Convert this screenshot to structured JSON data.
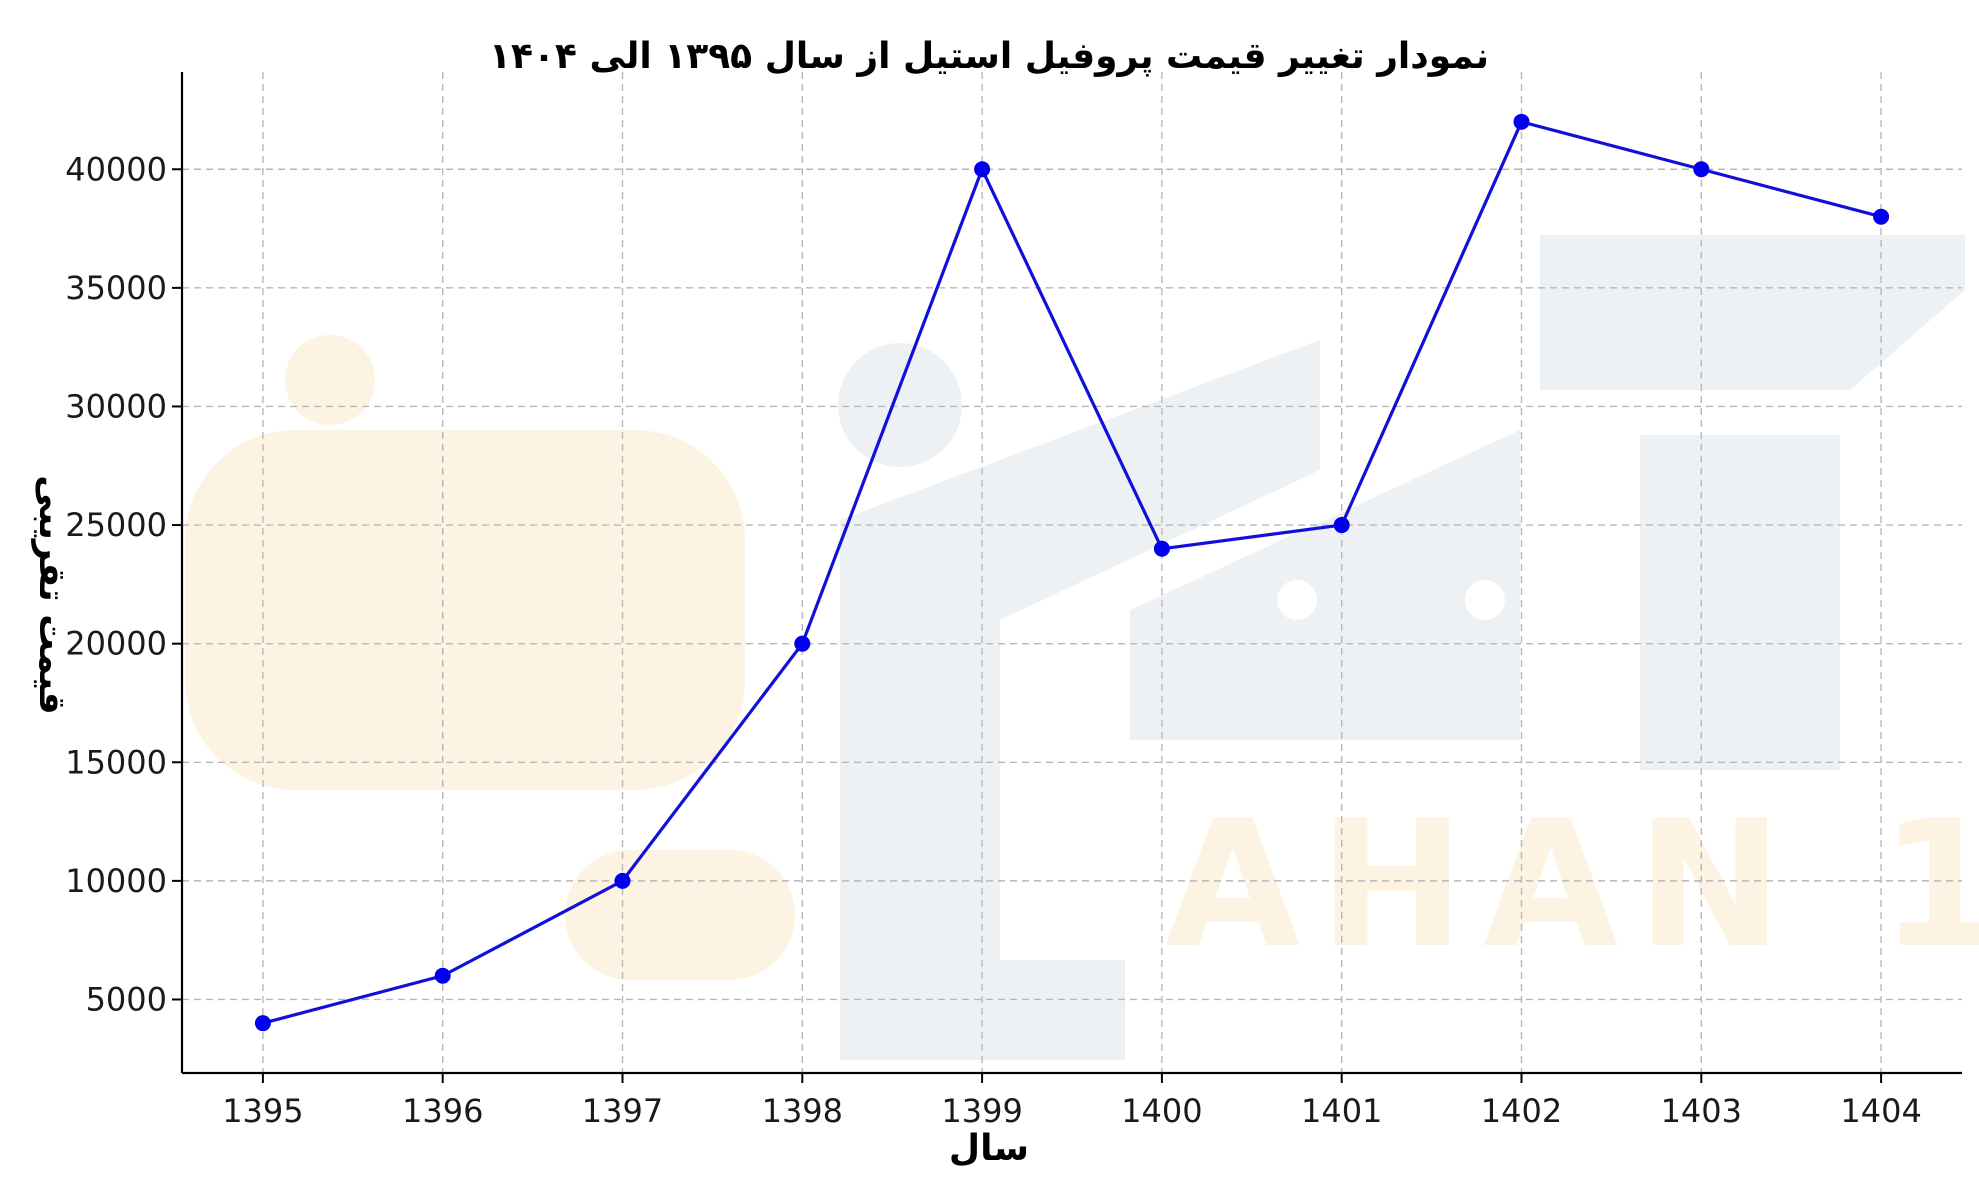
{
  "chart_data": {
    "type": "line",
    "title": "نمودار تغییر قیمت پروفیل استیل از سال ۱۳۹۵ الی ۱۴۰۴",
    "xlabel": "سال",
    "ylabel": "قیمت تقریبی",
    "x": [
      1395,
      1396,
      1397,
      1398,
      1399,
      1400,
      1401,
      1402,
      1403,
      1404
    ],
    "series": [
      {
        "values": [
          4000,
          6000,
          10000,
          20000,
          40000,
          24000,
          25000,
          42000,
          40000,
          38000
        ]
      }
    ],
    "xtick_labels": [
      "1395",
      "1396",
      "1397",
      "1398",
      "1399",
      "1400",
      "1401",
      "1402",
      "1403",
      "1404"
    ],
    "yticks": [
      5000,
      10000,
      15000,
      20000,
      25000,
      30000,
      35000,
      40000
    ],
    "ytick_labels": [
      "5000",
      "10000",
      "15000",
      "20000",
      "25000",
      "30000",
      "35000",
      "40000"
    ],
    "ylim": [
      1900,
      44100
    ],
    "xlim": [
      1394.55,
      1404.45
    ],
    "grid": true,
    "line_color": "#1010d8",
    "marker_color": "#0000ee",
    "watermark_text": "AHAN 1"
  }
}
